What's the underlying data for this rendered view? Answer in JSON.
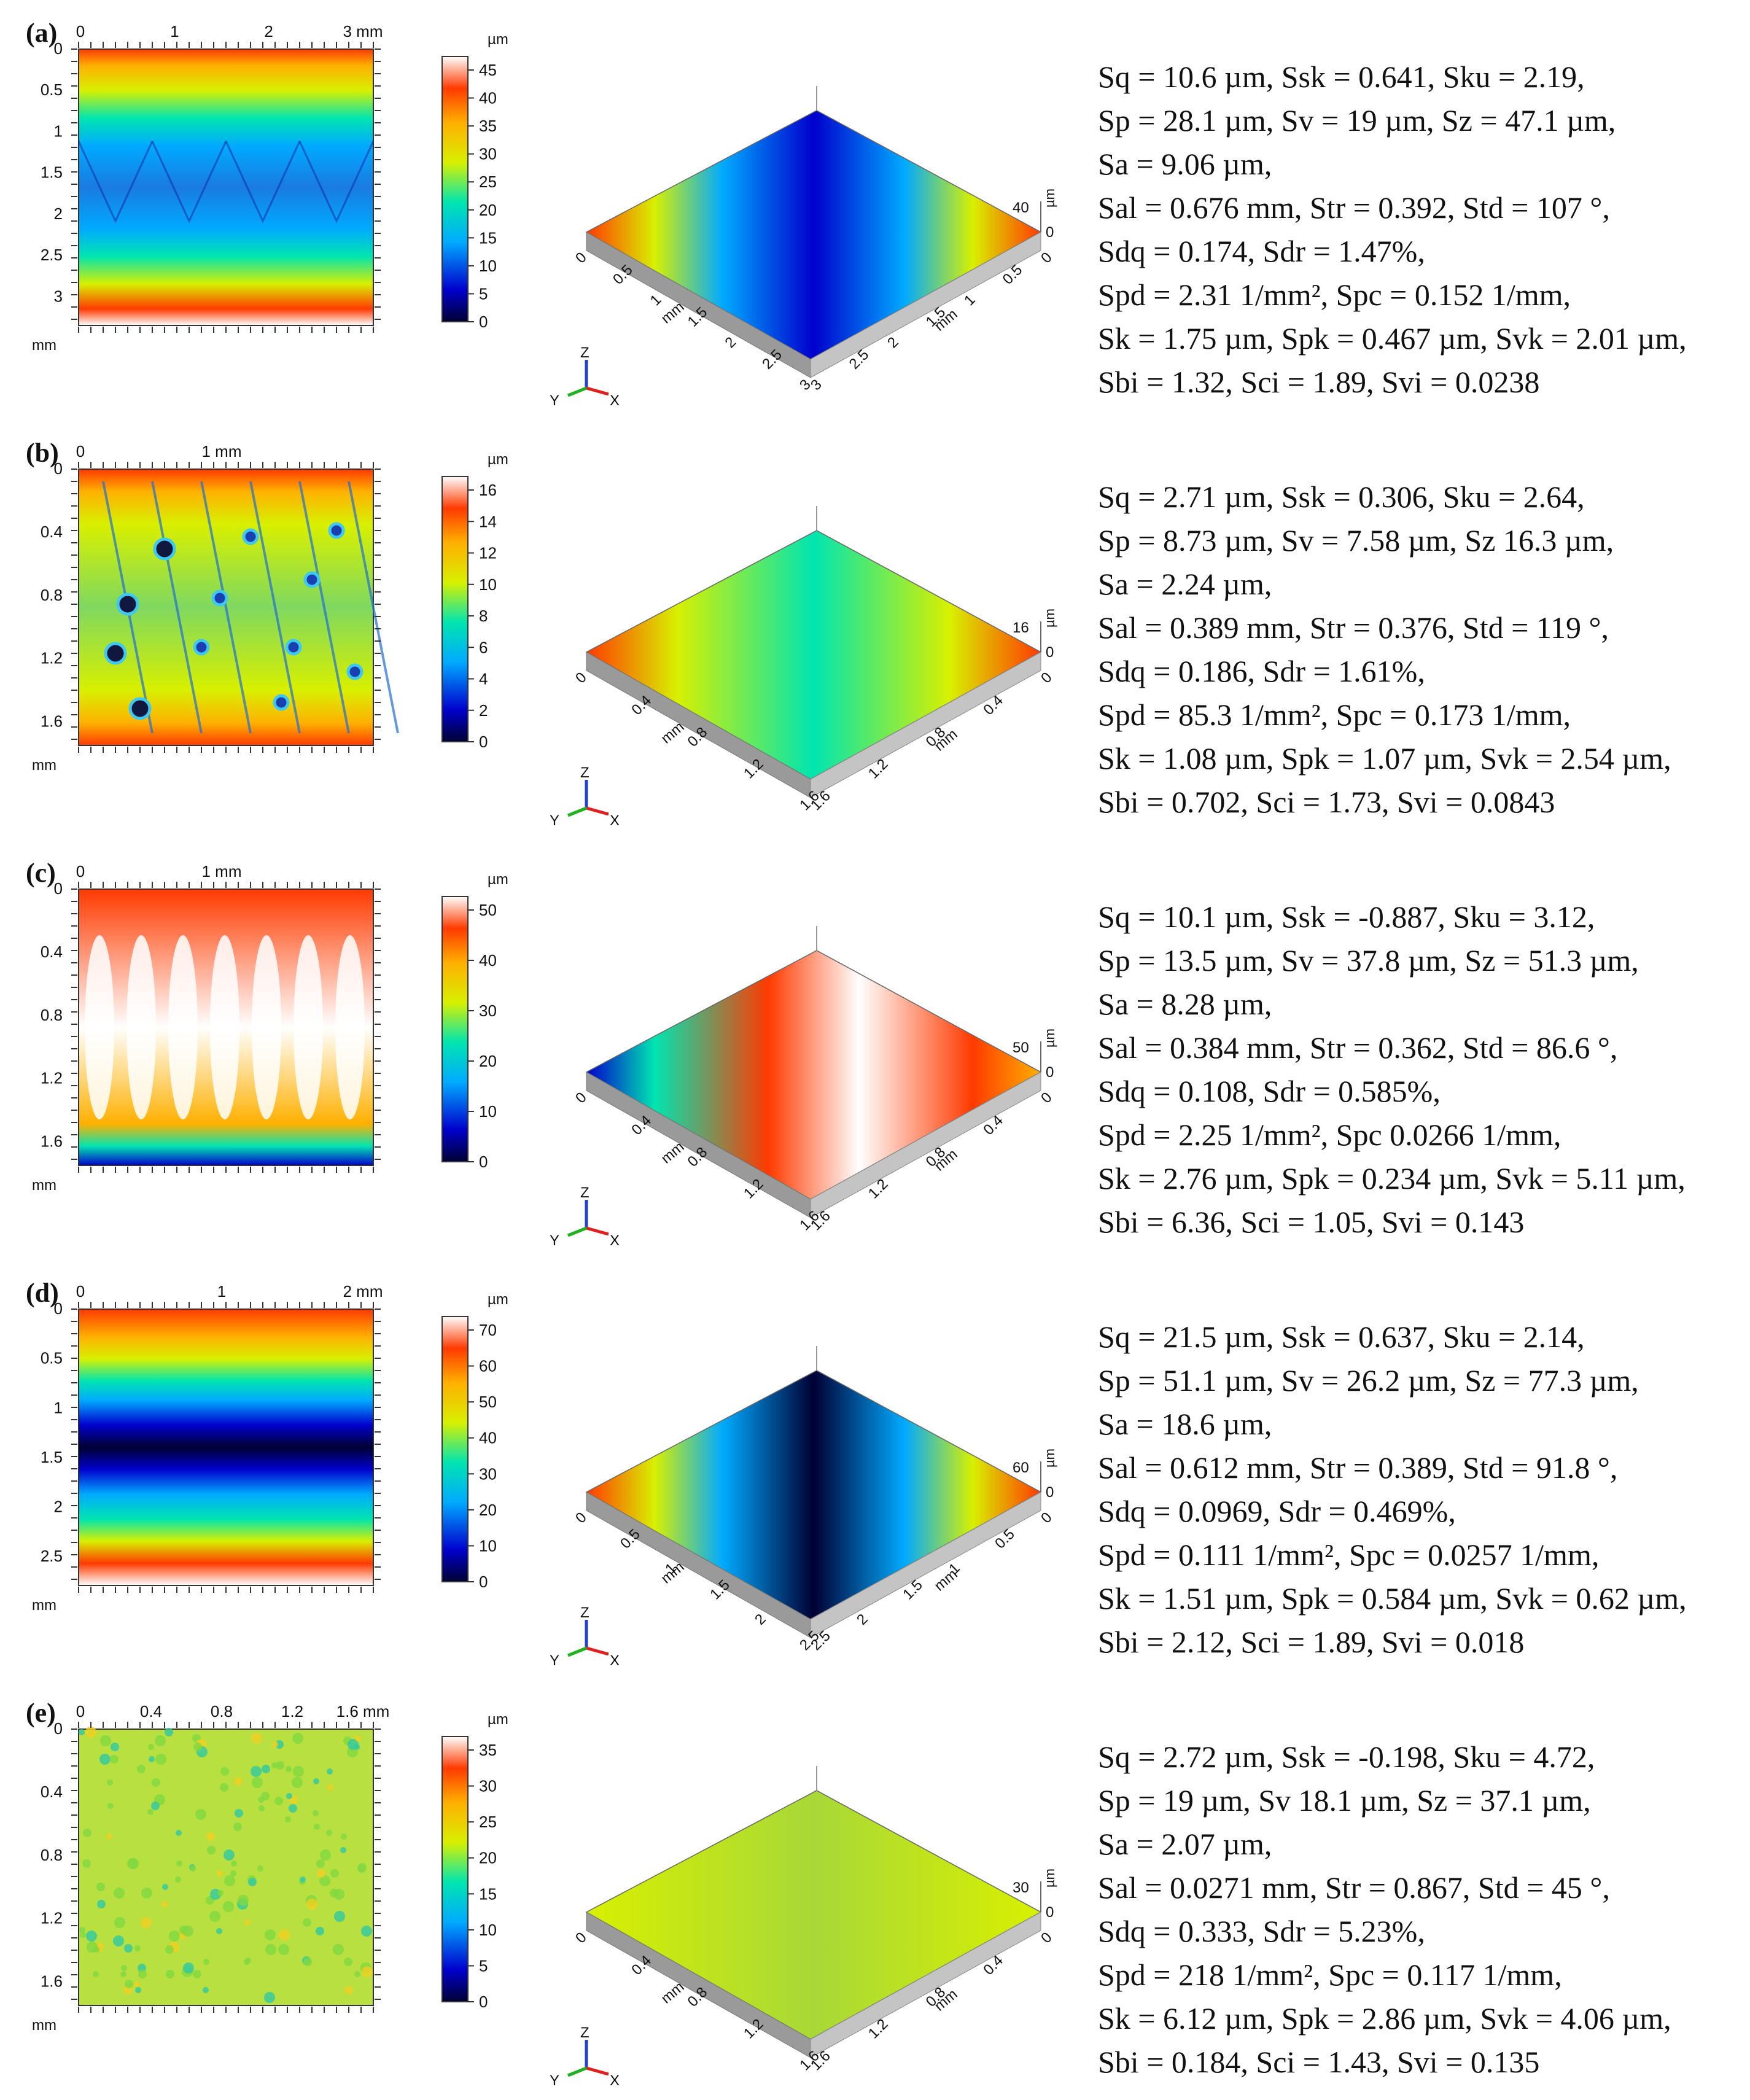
{
  "figure": {
    "panels": [
      {
        "label": "(a)",
        "xticks": [
          "0",
          "1",
          "2",
          "3 mm"
        ],
        "yticks": [
          "0",
          "0.5",
          "1",
          "1.5",
          "2",
          "2.5",
          "3"
        ],
        "axis_unit": "mm",
        "colorbar_unit": "µm",
        "colorbar_ticks": [
          "45",
          "40",
          "35",
          "30",
          "25",
          "20",
          "15",
          "10",
          "5",
          "0"
        ],
        "surface_pattern": "bands-valley",
        "view3d": {
          "z_label": "40",
          "z_zero": "0",
          "z_unit": "µm",
          "x_ticks": [
            "0",
            "0.5",
            "1",
            "1.5",
            "2",
            "2.5",
            "3"
          ],
          "y_ticks": [
            "3",
            "2.5",
            "2",
            "1.5",
            "1",
            "0.5",
            "0"
          ],
          "unit": "mm"
        },
        "params": [
          "Sq = 10.6 µm, Ssk = 0.641, Sku = 2.19,",
          "Sp = 28.1 µm, Sv = 19 µm, Sz = 47.1 µm,",
          "Sa = 9.06 µm,",
          "Sal = 0.676 mm, Str = 0.392, Std = 107 °,",
          "Sdq = 0.174, Sdr = 1.47%,",
          "Spd = 2.31 1/mm², Spc = 0.152 1/mm,",
          "Sk = 1.75 µm, Spk = 0.467 µm, Svk = 2.01 µm,",
          "Sbi = 1.32, Sci = 1.89, Svi = 0.0238"
        ]
      },
      {
        "label": "(b)",
        "xticks": [
          "0",
          "1 mm"
        ],
        "yticks": [
          "0",
          "0.4",
          "0.8",
          "1.2",
          "1.6"
        ],
        "axis_unit": "mm",
        "colorbar_unit": "µm",
        "colorbar_ticks": [
          "16",
          "14",
          "12",
          "10",
          "8",
          "6",
          "4",
          "2",
          "0"
        ],
        "surface_pattern": "dimples",
        "view3d": {
          "z_label": "16",
          "z_zero": "0",
          "z_unit": "µm",
          "x_ticks": [
            "0",
            "0.4",
            "0.8",
            "1.2",
            "1.6"
          ],
          "y_ticks": [
            "1.6",
            "1.2",
            "0.8",
            "0.4",
            "0"
          ],
          "unit": "mm"
        },
        "params": [
          "Sq = 2.71 µm, Ssk = 0.306, Sku = 2.64,",
          "Sp = 8.73 µm, Sv = 7.58 µm, Sz 16.3 µm,",
          "Sa = 2.24 µm,",
          "Sal = 0.389 mm, Str = 0.376, Std = 119 °,",
          "Sdq = 0.186, Sdr = 1.61%,",
          "Spd = 85.3 1/mm², Spc = 0.173 1/mm,",
          "Sk = 1.08 µm, Spk = 1.07 µm, Svk = 2.54 µm,",
          "Sbi = 0.702, Sci = 1.73, Svi = 0.0843"
        ]
      },
      {
        "label": "(c)",
        "xticks": [
          "0",
          "1 mm"
        ],
        "yticks": [
          "0",
          "0.4",
          "0.8",
          "1.2",
          "1.6"
        ],
        "axis_unit": "mm",
        "colorbar_unit": "µm",
        "colorbar_ticks": [
          "50",
          "40",
          "30",
          "20",
          "10",
          "0"
        ],
        "surface_pattern": "ridges",
        "view3d": {
          "z_label": "50",
          "z_zero": "0",
          "z_unit": "µm",
          "x_ticks": [
            "0",
            "0.4",
            "0.8",
            "1.2",
            "1.6"
          ],
          "y_ticks": [
            "1.6",
            "1.2",
            "0.8",
            "0.4",
            "0"
          ],
          "unit": "mm"
        },
        "params": [
          "Sq = 10.1 µm, Ssk = -0.887, Sku = 3.12,",
          "Sp = 13.5 µm, Sv = 37.8 µm, Sz = 51.3 µm,",
          "Sa = 8.28 µm,",
          "Sal = 0.384 mm, Str = 0.362, Std = 86.6 °,",
          "Sdq = 0.108, Sdr = 0.585%,",
          "Spd = 2.25 1/mm², Spc 0.0266 1/mm,",
          "Sk = 2.76 µm, Spk = 0.234 µm, Svk = 5.11 µm,",
          "Sbi = 6.36, Sci = 1.05, Svi = 0.143"
        ]
      },
      {
        "label": "(d)",
        "xticks": [
          "0",
          "1",
          "2 mm"
        ],
        "yticks": [
          "0",
          "0.5",
          "1",
          "1.5",
          "2",
          "2.5"
        ],
        "axis_unit": "mm",
        "colorbar_unit": "µm",
        "colorbar_ticks": [
          "70",
          "60",
          "50",
          "40",
          "30",
          "20",
          "10",
          "0"
        ],
        "surface_pattern": "deep-valley",
        "view3d": {
          "z_label": "60",
          "z_zero": "0",
          "z_unit": "µm",
          "x_ticks": [
            "0",
            "0.5",
            "1",
            "1.5",
            "2",
            "2.5"
          ],
          "y_ticks": [
            "2.5",
            "2",
            "1.5",
            "1",
            "0.5",
            "0"
          ],
          "unit": "mm"
        },
        "params": [
          "Sq = 21.5 µm, Ssk = 0.637, Sku = 2.14,",
          "Sp = 51.1 µm, Sv = 26.2 µm, Sz = 77.3 µm,",
          "Sa = 18.6 µm,",
          "Sal = 0.612 mm, Str = 0.389, Std = 91.8 °,",
          "Sdq = 0.0969, Sdr = 0.469%,",
          "Spd = 0.111 1/mm², Spc = 0.0257 1/mm,",
          "Sk = 1.51 µm, Spk = 0.584 µm, Svk = 0.62 µm,",
          "Sbi = 2.12, Sci = 1.89, Svi = 0.018"
        ]
      },
      {
        "label": "(e)",
        "xticks": [
          "0",
          "0.4",
          "0.8",
          "1.2",
          "1.6 mm"
        ],
        "yticks": [
          "0",
          "0.4",
          "0.8",
          "1.2",
          "1.6"
        ],
        "axis_unit": "mm",
        "colorbar_unit": "µm",
        "colorbar_ticks": [
          "35",
          "30",
          "25",
          "20",
          "15",
          "10",
          "5",
          "0"
        ],
        "surface_pattern": "random",
        "view3d": {
          "z_label": "30",
          "z_zero": "0",
          "z_unit": "µm",
          "x_ticks": [
            "0",
            "0.4",
            "0.8",
            "1.2",
            "1.6"
          ],
          "y_ticks": [
            "1.6",
            "1.2",
            "0.8",
            "0.4",
            "0"
          ],
          "unit": "mm"
        },
        "params": [
          "Sq = 2.72 µm, Ssk = -0.198, Sku = 4.72,",
          "Sp = 19 µm, Sv 18.1 µm, Sz = 37.1 µm,",
          "Sa = 2.07 µm,",
          "Sal = 0.0271 mm, Str = 0.867, Std = 45 °,",
          "Sdq = 0.333, Sdr = 5.23%,",
          "Spd = 218 1/mm², Spc = 0.117 1/mm,",
          "Sk = 6.12 µm, Spk = 2.86 µm, Svk = 4.06 µm,",
          "Sbi = 0.184, Sci = 1.43, Svi = 0.135"
        ]
      }
    ],
    "triad": {
      "x": "X",
      "y": "Y",
      "z": "Z"
    },
    "colors": {
      "c0": "#000033",
      "c1": "#0000cc",
      "c2": "#00aaff",
      "c3": "#00e5b0",
      "c4": "#d8f000",
      "c5": "#ffb000",
      "c6": "#ff3a00",
      "c7": "#ffffff",
      "frame": "#333333"
    }
  }
}
